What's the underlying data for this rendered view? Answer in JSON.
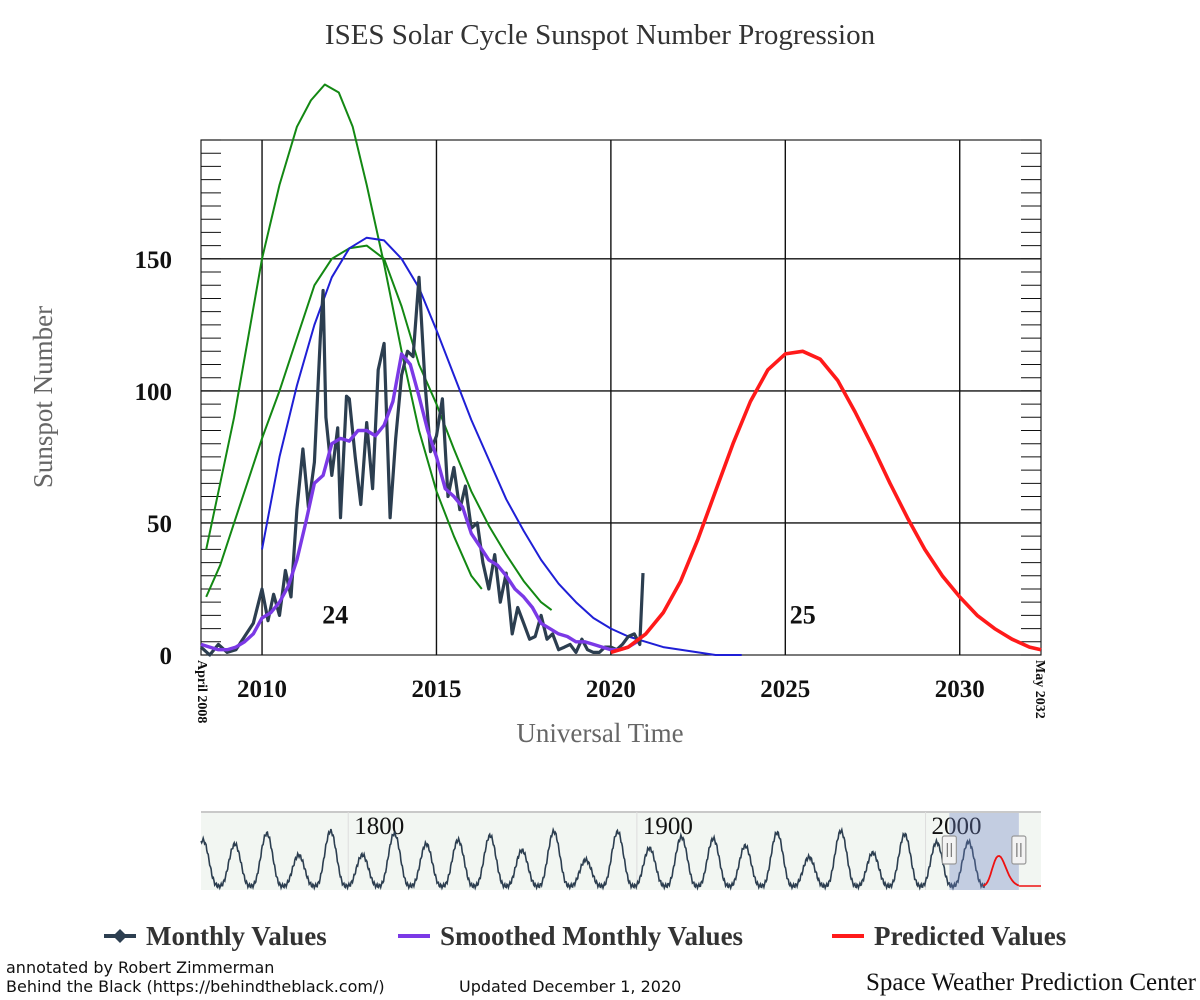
{
  "chart_data": {
    "type": "line",
    "title": "ISES Solar Cycle Sunspot Number Progression",
    "xlabel": "Universal Time",
    "ylabel": "Sunspot Number",
    "xlim": [
      2008.25,
      2032.33
    ],
    "ylim": [
      0,
      195
    ],
    "range_start_label": "April 2008",
    "range_end_label": "May 2032",
    "x_ticks": [
      "2010",
      "2015",
      "2020",
      "2025",
      "2030"
    ],
    "y_ticks": [
      "0",
      "50",
      "100",
      "150"
    ],
    "grid": true,
    "cycle_labels": [
      {
        "text": "24",
        "x": 2012.1,
        "y": 12
      },
      {
        "text": "25",
        "x": 2025.5,
        "y": 12
      }
    ],
    "series": [
      {
        "name": "Monthly Values",
        "color": "#2c3e50",
        "x": [
          2008.25,
          2008.5,
          2008.75,
          2009.0,
          2009.25,
          2009.5,
          2009.75,
          2010.0,
          2010.17,
          2010.33,
          2010.5,
          2010.67,
          2010.83,
          2011.0,
          2011.17,
          2011.33,
          2011.5,
          2011.67,
          2011.75,
          2011.83,
          2012.0,
          2012.17,
          2012.25,
          2012.42,
          2012.5,
          2012.67,
          2012.83,
          2013.0,
          2013.17,
          2013.33,
          2013.5,
          2013.67,
          2013.83,
          2014.0,
          2014.17,
          2014.33,
          2014.5,
          2014.67,
          2014.83,
          2015.0,
          2015.17,
          2015.33,
          2015.5,
          2015.67,
          2015.83,
          2016.0,
          2016.17,
          2016.33,
          2016.5,
          2016.67,
          2016.83,
          2017.0,
          2017.17,
          2017.33,
          2017.5,
          2017.67,
          2017.83,
          2018.0,
          2018.17,
          2018.33,
          2018.5,
          2018.67,
          2018.83,
          2019.0,
          2019.17,
          2019.33,
          2019.5,
          2019.67,
          2019.83,
          2020.0,
          2020.17,
          2020.33,
          2020.5,
          2020.67,
          2020.83,
          2020.92
        ],
        "values": [
          3,
          0,
          4,
          1,
          2,
          7,
          12,
          25,
          13,
          23,
          15,
          32,
          22,
          55,
          78,
          56,
          73,
          120,
          138,
          90,
          68,
          86,
          52,
          98,
          97,
          75,
          57,
          88,
          63,
          108,
          118,
          52,
          82,
          106,
          115,
          113,
          143,
          103,
          77,
          83,
          97,
          60,
          71,
          55,
          64,
          48,
          50,
          35,
          25,
          38,
          20,
          31,
          8,
          18,
          12,
          6,
          7,
          15,
          6,
          8,
          2,
          3,
          4,
          1,
          6,
          2,
          1,
          1,
          3,
          3,
          2,
          4,
          7,
          8,
          4,
          31
        ]
      },
      {
        "name": "Smoothed Monthly Values",
        "color": "#7b39e6",
        "x": [
          2008.25,
          2008.5,
          2008.75,
          2009.0,
          2009.25,
          2009.5,
          2009.75,
          2010.0,
          2010.25,
          2010.5,
          2010.75,
          2011.0,
          2011.25,
          2011.5,
          2011.75,
          2012.0,
          2012.25,
          2012.5,
          2012.75,
          2013.0,
          2013.25,
          2013.5,
          2013.75,
          2014.0,
          2014.25,
          2014.5,
          2014.75,
          2015.0,
          2015.25,
          2015.5,
          2015.75,
          2016.0,
          2016.25,
          2016.5,
          2016.75,
          2017.0,
          2017.25,
          2017.5,
          2017.75,
          2018.0,
          2018.25,
          2018.5,
          2018.75,
          2019.0,
          2019.25,
          2019.5,
          2019.75,
          2020.0,
          2020.25,
          2020.5,
          2020.75
        ],
        "values": [
          4,
          3,
          2,
          2,
          3,
          5,
          8,
          14,
          16,
          20,
          26,
          36,
          50,
          65,
          68,
          80,
          82,
          81,
          85,
          85,
          83,
          87,
          96,
          114,
          110,
          98,
          85,
          75,
          63,
          60,
          56,
          46,
          41,
          36,
          34,
          30,
          25,
          22,
          18,
          12,
          10,
          8,
          7,
          5,
          5,
          4,
          3,
          2,
          2,
          3,
          5
        ]
      },
      {
        "name": "Predicted Values",
        "color": "#ff1a1a",
        "x": [
          2020.0,
          2020.5,
          2021.0,
          2021.5,
          2022.0,
          2022.5,
          2023.0,
          2023.5,
          2024.0,
          2024.5,
          2025.0,
          2025.5,
          2026.0,
          2026.5,
          2027.0,
          2027.5,
          2028.0,
          2028.5,
          2029.0,
          2029.5,
          2030.0,
          2030.5,
          2031.0,
          2031.5,
          2032.0,
          2032.33
        ],
        "values": [
          1,
          3,
          8,
          16,
          28,
          44,
          62,
          80,
          96,
          108,
          114,
          115,
          112,
          104,
          92,
          79,
          65,
          52,
          40,
          30,
          22,
          15,
          10,
          6,
          3,
          2
        ]
      },
      {
        "name": "",
        "color": "#1f1fd6",
        "x": [
          2010.0,
          2010.5,
          2011.0,
          2011.5,
          2012.0,
          2012.5,
          2013.0,
          2013.5,
          2014.0,
          2014.5,
          2015.0,
          2015.5,
          2016.0,
          2016.5,
          2017.0,
          2017.5,
          2018.0,
          2018.5,
          2019.0,
          2019.5,
          2020.0,
          2020.5,
          2021.0,
          2021.5,
          2022.0,
          2022.5,
          2023.0,
          2023.5,
          2023.75
        ],
        "values": [
          40,
          75,
          102,
          125,
          143,
          154,
          158,
          157,
          150,
          139,
          123,
          106,
          89,
          74,
          59,
          47,
          36,
          27,
          20,
          14,
          10,
          7,
          5,
          3,
          2,
          1,
          0,
          0,
          0
        ]
      },
      {
        "name": "",
        "color": "#138813",
        "x": [
          2008.4,
          2008.8,
          2009.2,
          2009.6,
          2010.0,
          2010.5,
          2011.0,
          2011.5,
          2012.0,
          2012.5,
          2013.0,
          2013.5,
          2014.0,
          2014.5,
          2015.0,
          2015.5,
          2016.0,
          2016.5,
          2017.0,
          2017.5,
          2018.0,
          2018.3
        ],
        "values": [
          22,
          34,
          50,
          66,
          82,
          100,
          120,
          140,
          150,
          154,
          155,
          150,
          132,
          110,
          95,
          78,
          62,
          49,
          38,
          28,
          20,
          17
        ]
      },
      {
        "name": "",
        "color": "#138813",
        "x": [
          2008.4,
          2008.8,
          2009.2,
          2009.6,
          2010.0,
          2010.5,
          2011.0,
          2011.4,
          2011.8,
          2012.2,
          2012.6,
          2013.0,
          2013.5,
          2014.0,
          2014.5,
          2015.0,
          2015.5,
          2016.0,
          2016.3
        ],
        "values": [
          40,
          65,
          90,
          120,
          150,
          178,
          200,
          210,
          216,
          213,
          200,
          178,
          148,
          115,
          85,
          62,
          45,
          30,
          25
        ]
      }
    ],
    "legend": {
      "position": "bottom",
      "entries": [
        {
          "label": "Monthly Values",
          "color": "#2c3e50",
          "marker": "diamond"
        },
        {
          "label": "Smoothed Monthly Values",
          "color": "#7b39e6",
          "marker": "line"
        },
        {
          "label": "Predicted Values",
          "color": "#ff1a1a",
          "marker": "line"
        }
      ]
    },
    "navigator": {
      "labels": [
        "1800",
        "1900",
        "2000"
      ],
      "range": [
        1749,
        2040
      ],
      "selected_range": [
        2008.25,
        2032.33
      ]
    }
  },
  "footer": {
    "annotation_line1": "annotated by Robert Zimmerman",
    "annotation_line2": "Behind the Black (https://behindtheblack.com/)",
    "updated": "Updated December 1, 2020",
    "agency": "Space Weather Prediction Center"
  }
}
